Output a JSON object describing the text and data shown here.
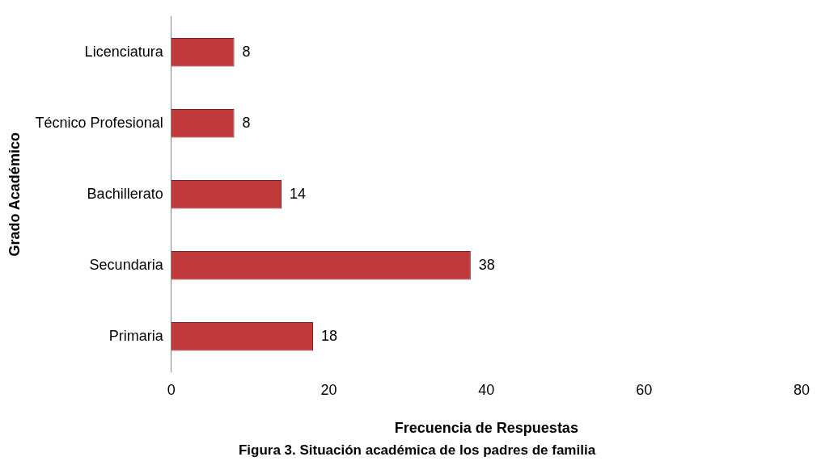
{
  "chart_data": {
    "type": "bar",
    "orientation": "horizontal",
    "xlabel": "Frecuencia de Respuestas",
    "ylabel": "Grado Académico",
    "categories": [
      "Licenciatura",
      "Técnico Profesional",
      "Bachillerato",
      "Secundaria",
      "Primaria"
    ],
    "values": [
      8,
      8,
      14,
      38,
      18
    ],
    "color": "#c0393b",
    "xlim": [
      0,
      80
    ],
    "xticks": [
      0,
      20,
      40,
      60,
      80
    ],
    "grid": false,
    "data_labels": true,
    "legend": false,
    "annotations": [
      "Figura 3. Situación académica de los padres de familia"
    ]
  }
}
